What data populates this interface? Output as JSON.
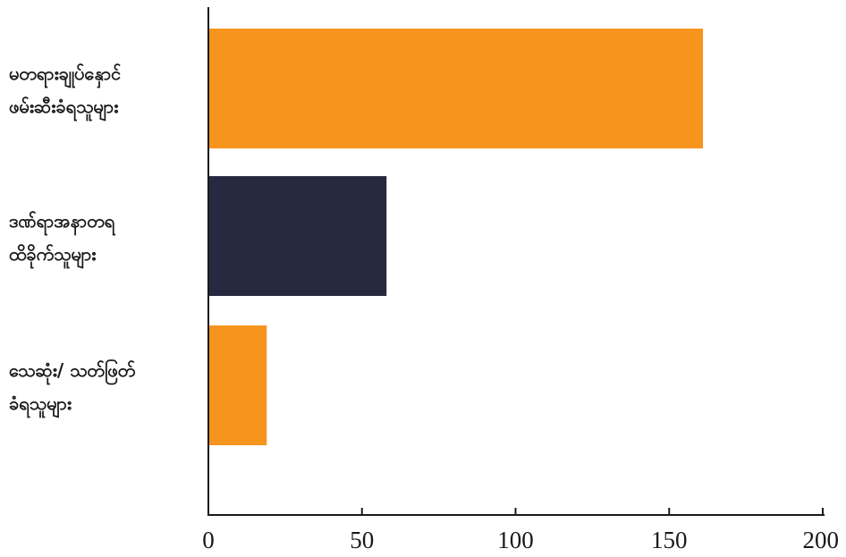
{
  "chart_data": {
    "type": "bar",
    "orientation": "horizontal",
    "title": "",
    "xlabel": "",
    "ylabel": "",
    "categories": [
      "မတရားချုပ်နှောင် ဖမ်းဆီးခံရသူများ",
      "ဒဏ်ရာအနာတရ ထိခိုက်သူများ",
      "သေဆုံး/ သတ်ဖြတ် ခံရသူများ"
    ],
    "category_lines": [
      [
        "မတရားချုပ်နှောင်",
        "ဖမ်းဆီးခံရသူများ"
      ],
      [
        "ဒဏ်ရာအနာတရ",
        "ထိခိုက်သူများ"
      ],
      [
        "သေဆုံး/ သတ်ဖြတ်",
        "ခံရသူများ"
      ]
    ],
    "values": [
      161,
      58,
      19
    ],
    "bar_colors": [
      "#F7941D",
      "#262A41",
      "#F7941D"
    ],
    "xlim": [
      0,
      200
    ],
    "xticks": [
      0,
      50,
      100,
      150,
      200
    ],
    "grid": false,
    "legend": "none"
  }
}
